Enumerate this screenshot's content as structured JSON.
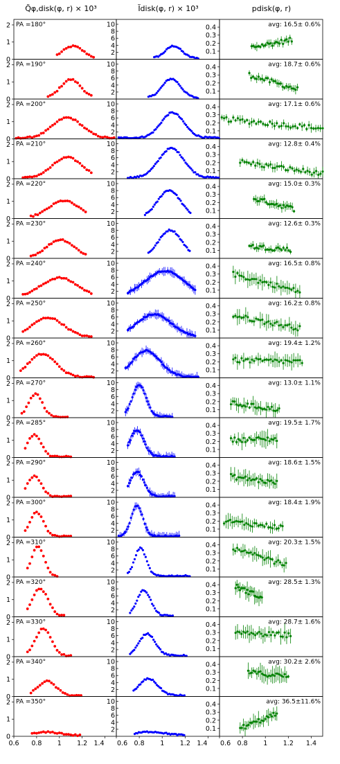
{
  "column_headers": [
    "Q̃φ,disk(φ, r) × 10³",
    "Ĩdisk(φ, r) × 10³",
    "pdisk(φ, r)"
  ],
  "x_ticks": [
    "0.6",
    "0.8",
    "1",
    "1.2",
    "1.4"
  ],
  "x_ticks_left": [
    "0.6",
    "0.8",
    "1",
    "1.2",
    "1.4"
  ],
  "y_ticks_q": [
    "0",
    "1",
    "2"
  ],
  "y_ticks_i": [
    "2",
    "4",
    "6",
    "8",
    "10"
  ],
  "y_ticks_p": [
    "0.1",
    "0.2",
    "0.3",
    "0.4"
  ],
  "colors": {
    "q": "#ff0000",
    "i": "#0000ff",
    "p": "#008000"
  },
  "chart_data": {
    "type": "scatter",
    "xlim": [
      0.6,
      1.5
    ],
    "ylim_q": [
      0,
      2.2
    ],
    "ylim_i": [
      0,
      10.8
    ],
    "ylim_p": [
      0,
      0.47
    ],
    "grid": false,
    "panels": [
      {
        "pa_label": "PA =180°",
        "pa": 180,
        "avg_label": "avg: 16.5± 0.6%",
        "q": {
          "c": 1.12,
          "w": 0.09,
          "a": 0.72,
          "x0": 0.98,
          "x1": 1.32
        },
        "i": {
          "c": 1.1,
          "w": 0.07,
          "a": 3.5,
          "x0": 0.93,
          "x1": 1.32
        },
        "p": {
          "x0": 0.88,
          "x1": 1.23,
          "y0": 0.15,
          "y1": 0.24
        }
      },
      {
        "pa_label": "PA =190°",
        "pa": 190,
        "avg_label": "avg: 18.7± 0.6%",
        "q": {
          "c": 1.1,
          "w": 0.09,
          "a": 1.1,
          "x0": 0.9,
          "x1": 1.3
        },
        "i": {
          "c": 1.08,
          "w": 0.08,
          "a": 5.5,
          "x0": 0.88,
          "x1": 1.32
        },
        "p": {
          "x0": 0.86,
          "x1": 1.28,
          "y0": 0.3,
          "y1": 0.12
        }
      },
      {
        "pa_label": "PA =200°",
        "pa": 200,
        "avg_label": "avg: 17.1± 0.6%",
        "q": {
          "c": 1.07,
          "w": 0.13,
          "a": 1.2,
          "x0": 0.62,
          "x1": 1.5
        },
        "i": {
          "c": 1.09,
          "w": 0.1,
          "a": 7.2,
          "x0": 0.62,
          "x1": 1.5
        },
        "p": {
          "x0": 0.62,
          "x1": 1.5,
          "y0": 0.25,
          "y1": 0.13
        }
      },
      {
        "pa_label": "PA =210°",
        "pa": 210,
        "avg_label": "avg: 12.8± 0.4%",
        "q": {
          "c": 1.07,
          "w": 0.13,
          "a": 1.2,
          "x0": 0.68,
          "x1": 1.3
        },
        "i": {
          "c": 1.08,
          "w": 0.11,
          "a": 8.4,
          "x0": 0.7,
          "x1": 1.5
        },
        "p": {
          "x0": 0.78,
          "x1": 1.5,
          "y0": 0.21,
          "y1": 0.06
        }
      },
      {
        "pa_label": "PA =220°",
        "pa": 220,
        "avg_label": "avg: 15.0± 0.3%",
        "q": {
          "c": 1.04,
          "w": 0.13,
          "a": 1.0,
          "x0": 0.75,
          "x1": 1.25
        },
        "i": {
          "c": 1.06,
          "w": 0.1,
          "a": 7.8,
          "x0": 0.85,
          "x1": 1.25
        },
        "p": {
          "x0": 0.9,
          "x1": 1.25,
          "y0": 0.25,
          "y1": 0.12
        }
      },
      {
        "pa_label": "PA =230°",
        "pa": 230,
        "avg_label": "avg: 12.6± 0.3%",
        "q": {
          "c": 1.01,
          "w": 0.12,
          "a": 1.05,
          "x0": 0.75,
          "x1": 1.25
        },
        "i": {
          "c": 1.07,
          "w": 0.1,
          "a": 7.8,
          "x0": 0.88,
          "x1": 1.25
        },
        "p": {
          "x0": 0.86,
          "x1": 1.22,
          "y0": 0.15,
          "y1": 0.11
        }
      },
      {
        "pa_label": "PA =240°",
        "pa": 240,
        "avg_label": "avg: 16.5± 0.8%",
        "q": {
          "c": 1.0,
          "w": 0.16,
          "a": 1.15,
          "x0": 0.68,
          "x1": 1.3
        },
        "i": {
          "c": 1.02,
          "w": 0.17,
          "a": 7.5,
          "x0": 0.7,
          "x1": 1.3
        },
        "p": {
          "x0": 0.72,
          "x1": 1.3,
          "y0": 0.3,
          "y1": 0.08
        }
      },
      {
        "pa_label": "PA =250°",
        "pa": 250,
        "avg_label": "avg: 16.2± 0.8%",
        "q": {
          "c": 0.9,
          "w": 0.14,
          "a": 1.15,
          "x0": 0.68,
          "x1": 1.3
        },
        "i": {
          "c": 0.93,
          "w": 0.15,
          "a": 6.5,
          "x0": 0.7,
          "x1": 1.3
        },
        "p": {
          "x0": 0.72,
          "x1": 1.3,
          "y0": 0.28,
          "y1": 0.12
        }
      },
      {
        "pa_label": "PA =260°",
        "pa": 260,
        "avg_label": "avg: 19.4± 1.2%",
        "q": {
          "c": 0.85,
          "w": 0.12,
          "a": 1.35,
          "x0": 0.66,
          "x1": 1.32
        },
        "i": {
          "c": 0.86,
          "w": 0.12,
          "a": 7.5,
          "x0": 0.68,
          "x1": 1.32
        },
        "p": {
          "x0": 0.72,
          "x1": 1.32,
          "y0": 0.22,
          "y1": 0.2
        }
      },
      {
        "pa_label": "PA =270°",
        "pa": 270,
        "avg_label": "avg: 13.0± 1.1%",
        "q": {
          "c": 0.79,
          "w": 0.06,
          "a": 1.35,
          "x0": 0.67,
          "x1": 1.08
        },
        "i": {
          "c": 0.8,
          "w": 0.06,
          "a": 9.0,
          "x0": 0.68,
          "x1": 1.1
        },
        "p": {
          "x0": 0.7,
          "x1": 1.12,
          "y0": 0.18,
          "y1": 0.1
        }
      },
      {
        "pa_label": "PA =285°",
        "pa": 285,
        "avg_label": "avg: 19.5± 1.7%",
        "q": {
          "c": 0.78,
          "w": 0.06,
          "a": 1.3,
          "x0": 0.7,
          "x1": 1.12
        },
        "i": {
          "c": 0.78,
          "w": 0.06,
          "a": 7.5,
          "x0": 0.7,
          "x1": 1.12
        },
        "p": {
          "x0": 0.7,
          "x1": 1.1,
          "y0": 0.22,
          "y1": 0.23
        }
      },
      {
        "pa_label": "PA =290°",
        "pa": 290,
        "avg_label": "avg: 18.6± 1.5%",
        "q": {
          "c": 0.78,
          "w": 0.06,
          "a": 1.2,
          "x0": 0.7,
          "x1": 1.12
        },
        "i": {
          "c": 0.78,
          "w": 0.06,
          "a": 7.0,
          "x0": 0.7,
          "x1": 1.12
        },
        "p": {
          "x0": 0.7,
          "x1": 1.1,
          "y0": 0.26,
          "y1": 0.18
        }
      },
      {
        "pa_label": "PA =300°",
        "pa": 300,
        "avg_label": "avg: 18.4± 1.9%",
        "q": {
          "c": 0.8,
          "w": 0.06,
          "a": 1.4,
          "x0": 0.7,
          "x1": 1.12
        },
        "i": {
          "c": 0.78,
          "w": 0.05,
          "a": 8.8,
          "x0": 0.62,
          "x1": 1.15
        },
        "p": {
          "x0": 0.64,
          "x1": 1.15,
          "y0": 0.2,
          "y1": 0.12
        }
      },
      {
        "pa_label": "PA =310°",
        "pa": 310,
        "avg_label": "avg: 20.3± 1.5%",
        "q": {
          "c": 0.81,
          "w": 0.055,
          "a": 1.75,
          "x0": 0.72,
          "x1": 1.0
        },
        "i": {
          "c": 0.81,
          "w": 0.05,
          "a": 8.0,
          "x0": 0.7,
          "x1": 1.25
        },
        "p": {
          "x0": 0.72,
          "x1": 1.18,
          "y0": 0.35,
          "y1": 0.15
        }
      },
      {
        "pa_label": "PA =320°",
        "pa": 320,
        "avg_label": "avg: 28.5± 1.3%",
        "q": {
          "c": 0.83,
          "w": 0.07,
          "a": 1.6,
          "x0": 0.72,
          "x1": 1.05
        },
        "i": {
          "c": 0.84,
          "w": 0.06,
          "a": 7.3,
          "x0": 0.72,
          "x1": 1.1
        },
        "p": {
          "x0": 0.74,
          "x1": 0.97,
          "y0": 0.38,
          "y1": 0.24
        }
      },
      {
        "pa_label": "PA =330°",
        "pa": 330,
        "avg_label": "avg: 28.7± 1.6%",
        "q": {
          "c": 0.86,
          "w": 0.07,
          "a": 1.6,
          "x0": 0.72,
          "x1": 1.12
        },
        "i": {
          "c": 0.87,
          "w": 0.07,
          "a": 6.3,
          "x0": 0.72,
          "x1": 1.22
        },
        "p": {
          "x0": 0.74,
          "x1": 1.22,
          "y0": 0.29,
          "y1": 0.27
        }
      },
      {
        "pa_label": "PA =340°",
        "pa": 340,
        "avg_label": "avg: 30.2± 2.6%",
        "q": {
          "c": 0.89,
          "w": 0.08,
          "a": 0.85,
          "x0": 0.75,
          "x1": 1.2
        },
        "i": {
          "c": 0.88,
          "w": 0.08,
          "a": 4.8,
          "x0": 0.75,
          "x1": 1.2
        },
        "p": {
          "x0": 0.85,
          "x1": 1.2,
          "y0": 0.3,
          "y1": 0.25
        }
      },
      {
        "pa_label": "PA =350°",
        "pa": 350,
        "avg_label": "avg: 36.5±11.6%",
        "q": {
          "c": 0.9,
          "w": 0.12,
          "a": 0.2,
          "x0": 0.76,
          "x1": 1.2
        },
        "i": {
          "c": 0.9,
          "w": 0.12,
          "a": 1.0,
          "x0": 0.76,
          "x1": 1.2
        },
        "p": {
          "x0": 0.78,
          "x1": 1.1,
          "y0": 0.1,
          "y1": 0.28
        }
      }
    ]
  }
}
